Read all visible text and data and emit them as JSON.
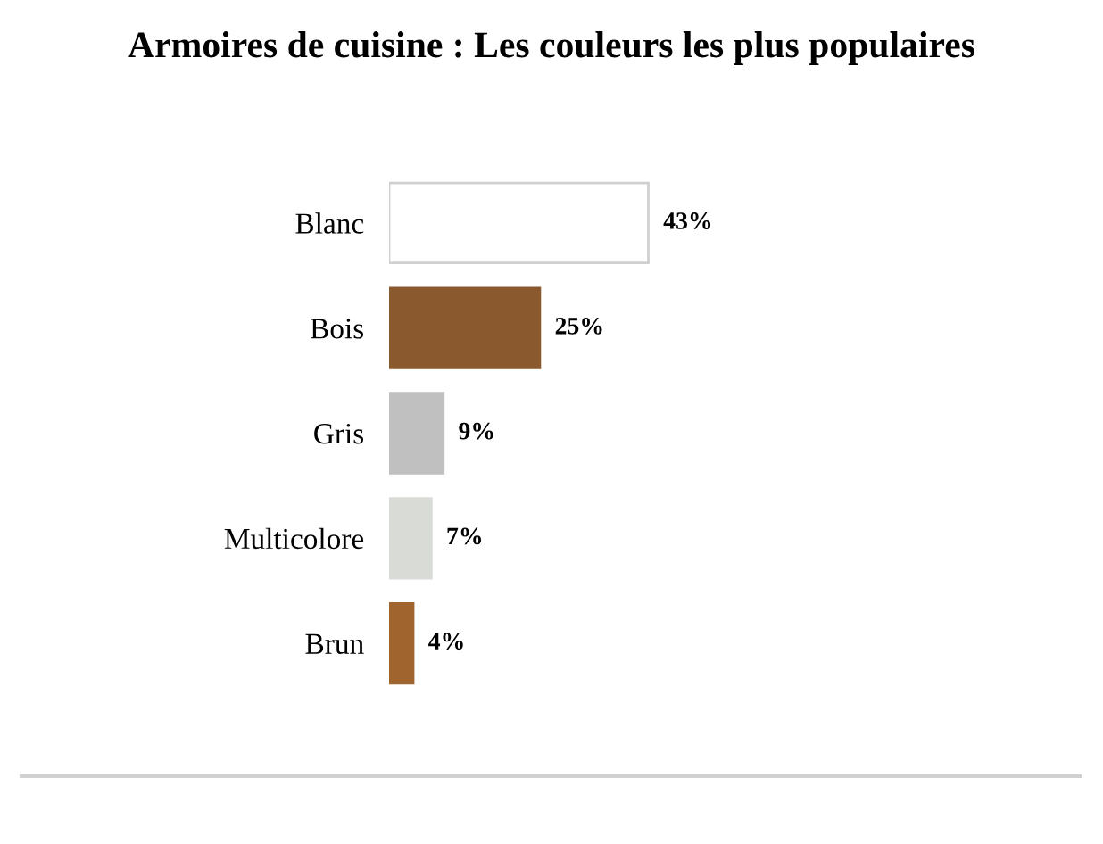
{
  "chart_data": {
    "type": "bar",
    "orientation": "horizontal",
    "title": "Armoires de cuisine : Les couleurs les plus populaires",
    "categories": [
      "Blanc",
      "Bois",
      "Gris",
      "Multicolore",
      "Brun"
    ],
    "values": [
      43,
      25,
      9,
      7,
      4
    ],
    "value_labels": [
      "43%",
      "25%",
      "9%",
      "7%",
      "4%"
    ],
    "colors": [
      "#ffffff",
      "#8a5a2e",
      "#c0c0c0",
      "#d9dcd6",
      "#a0652f"
    ],
    "tick_labels": "y"
  }
}
